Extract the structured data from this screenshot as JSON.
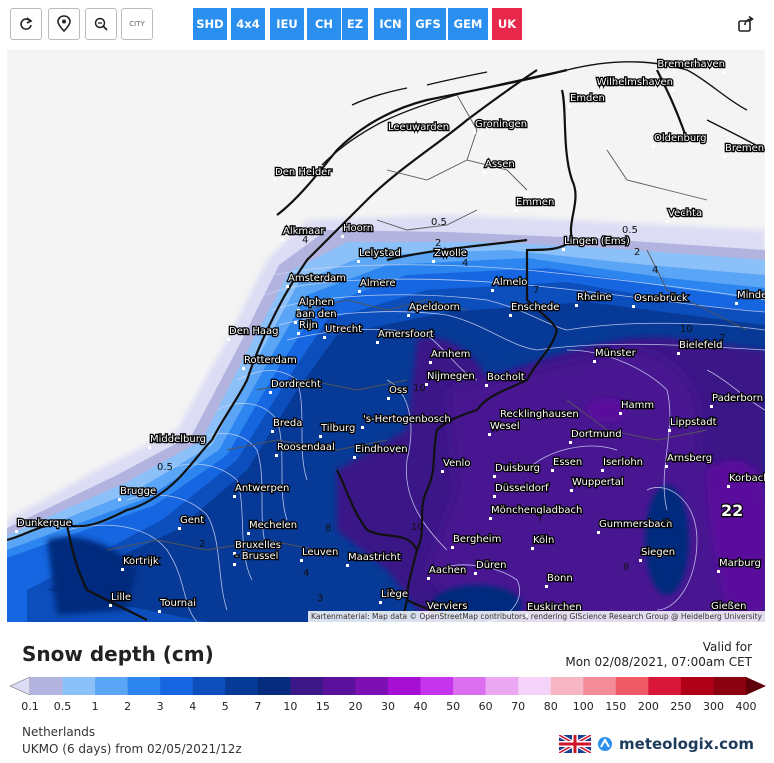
{
  "toolbar": {
    "refresh_icon": "refresh-icon",
    "location_icon": "map-pin-icon",
    "zoom_icon": "zoom-out-icon",
    "city_label": "CITY",
    "share_icon": "share-icon",
    "models": [
      "SHD",
      "4x4",
      "IEU",
      "CH",
      "EZ",
      "ICN",
      "GFS",
      "GEM",
      "UK"
    ],
    "active_model": "UK",
    "model_color": "#2b8ff0",
    "active_color": "#e8284b"
  },
  "map": {
    "attribution": "Kartenmaterial: Map data © OpenStreetMap contributors, rendering GIScience Research Group @ Heidelberg University",
    "cities": [
      {
        "name": "Bremerhaven"
      },
      {
        "name": "Wilhelmshaven"
      },
      {
        "name": "Emden"
      },
      {
        "name": "Leeuwarden"
      },
      {
        "name": "Groningen"
      },
      {
        "name": "Oldenburg"
      },
      {
        "name": "Bremen"
      },
      {
        "name": "Assen"
      },
      {
        "name": "Den Helder"
      },
      {
        "name": "Emmen"
      },
      {
        "name": "Vechta"
      },
      {
        "name": "Alkmaar"
      },
      {
        "name": "Hoorn"
      },
      {
        "name": "Lelystad"
      },
      {
        "name": "Zwolle"
      },
      {
        "name": "Lingen (Ems)"
      },
      {
        "name": "Amsterdam"
      },
      {
        "name": "Almere"
      },
      {
        "name": "Almelo"
      },
      {
        "name": "Alphen"
      },
      {
        "name": "aan den"
      },
      {
        "name": "Rijn"
      },
      {
        "name": "Apeldoorn"
      },
      {
        "name": "Enschede"
      },
      {
        "name": "Rheine"
      },
      {
        "name": "Osnabrück"
      },
      {
        "name": "Minden"
      },
      {
        "name": "Den Haag"
      },
      {
        "name": "Utrecht"
      },
      {
        "name": "Amersfoort"
      },
      {
        "name": "Bielefeld"
      },
      {
        "name": "Arnhem"
      },
      {
        "name": "Münster"
      },
      {
        "name": "Rotterdam"
      },
      {
        "name": "Nijmegen"
      },
      {
        "name": "Dordrecht"
      },
      {
        "name": "Oss"
      },
      {
        "name": "Bocholt"
      },
      {
        "name": "Paderborn"
      },
      {
        "name": "Breda"
      },
      {
        "name": "Tilburg"
      },
      {
        "name": "'s-Hertogenbosch"
      },
      {
        "name": "Recklinghausen"
      },
      {
        "name": "Hamm"
      },
      {
        "name": "Lippstadt"
      },
      {
        "name": "Middelburg"
      },
      {
        "name": "Roosendaal"
      },
      {
        "name": "Wesel"
      },
      {
        "name": "Eindhoven"
      },
      {
        "name": "Dortmund"
      },
      {
        "name": "Arnsberg"
      },
      {
        "name": "Venlo"
      },
      {
        "name": "Duisburg"
      },
      {
        "name": "Essen"
      },
      {
        "name": "Iserlohn"
      },
      {
        "name": "Korbach"
      },
      {
        "name": "Brugge"
      },
      {
        "name": "Antwerpen"
      },
      {
        "name": "Düsseldorf"
      },
      {
        "name": "Wuppertal"
      },
      {
        "name": "Dunkerque"
      },
      {
        "name": "Gent"
      },
      {
        "name": "Mechelen"
      },
      {
        "name": "Mönchengladbach"
      },
      {
        "name": "Gummersbach"
      },
      {
        "name": "Bruxelles"
      },
      {
        "name": "- Brussel"
      },
      {
        "name": "Leuven"
      },
      {
        "name": "Bergheim"
      },
      {
        "name": "Köln"
      },
      {
        "name": "Kortrijk"
      },
      {
        "name": "Maastricht"
      },
      {
        "name": "Siegen"
      },
      {
        "name": "Aachen"
      },
      {
        "name": "Düren"
      },
      {
        "name": "Bonn"
      },
      {
        "name": "Marburg"
      },
      {
        "name": "Lille"
      },
      {
        "name": "Tournai"
      },
      {
        "name": "Liège"
      },
      {
        "name": "Verviers"
      },
      {
        "name": "Euskirchen"
      },
      {
        "name": "Gießen"
      }
    ],
    "contour_labels": [
      "0.5",
      "0.5",
      "2",
      "4",
      "7",
      "10",
      "2",
      "4",
      "7",
      "10",
      "4",
      "8",
      "10",
      "7",
      "4",
      "2",
      "0.5",
      "3",
      "9",
      "7",
      "8"
    ],
    "max_value": "22"
  },
  "legend": {
    "title": "Snow depth (cm)",
    "valid_label": "Valid for",
    "valid_time": "Mon 02/08/2021, 07:00am CET",
    "ticks": [
      "0.1",
      "0.5",
      "1",
      "2",
      "3",
      "4",
      "5",
      "7",
      "10",
      "15",
      "20",
      "30",
      "40",
      "50",
      "60",
      "70",
      "80",
      "100",
      "150",
      "200",
      "250",
      "300",
      "400"
    ],
    "colors": [
      "#dcdcf5",
      "#b3b3e0",
      "#8cc0f8",
      "#5aa5f5",
      "#2d86f0",
      "#1566e0",
      "#0c4ebc",
      "#073a96",
      "#062c7d",
      "#3b1787",
      "#5a119c",
      "#7d10b3",
      "#a510d2",
      "#c635ed",
      "#dc6ff0",
      "#eba7f2",
      "#f5d2f7",
      "#f7b6c4",
      "#f48c9a",
      "#ef5966",
      "#d9173a",
      "#b00018",
      "#8a0010",
      "#5e000a"
    ]
  },
  "info": {
    "region": "Netherlands",
    "run": "UKMO (6 days) from 02/05/2021/12z"
  },
  "brand": {
    "flag_icon": "uk-flag-icon",
    "logo_icon": "meteologix-logo-icon",
    "name": "meteologix.com"
  }
}
